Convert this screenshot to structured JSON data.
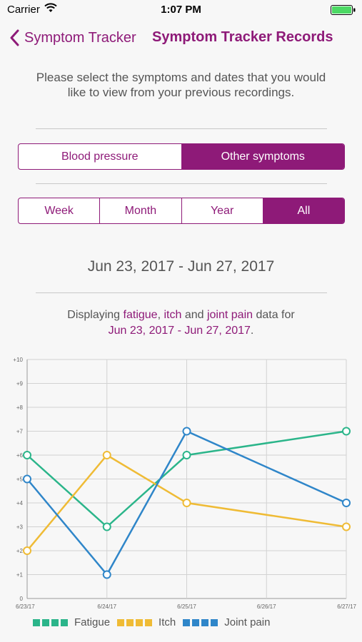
{
  "status_bar": {
    "carrier": "Carrier",
    "time": "1:07 PM"
  },
  "nav": {
    "back_label": "Symptom Tracker",
    "title": "Symptom Tracker Records"
  },
  "intro_text": "Please select the symptoms and dates that you would like to view from your previous recordings.",
  "category_segment": {
    "options": [
      "Blood pressure",
      "Other symptoms"
    ],
    "selected": 1
  },
  "period_segment": {
    "options": [
      "Week",
      "Month",
      "Year",
      "All"
    ],
    "selected": 3
  },
  "date_range": "Jun 23, 2017 - Jun 27, 2017",
  "display": {
    "prefix": "Displaying ",
    "symptom1": "fatigue",
    "sep1": ", ",
    "symptom2": "itch",
    "sep2": " and ",
    "symptom3": "joint pain",
    "suffix": " data for",
    "range": "Jun 23, 2017 - Jun 27, 2017",
    "end": "."
  },
  "colors": {
    "accent": "#8e1a78",
    "fatigue": "#2bb58a",
    "itch": "#efbb35",
    "joint_pain": "#2f86c9"
  },
  "chart_data": {
    "type": "line",
    "categories": [
      "6/23/17",
      "6/24/17",
      "6/25/17",
      "6/26/17",
      "6/27/17"
    ],
    "y_ticks": [
      "0",
      "+1",
      "+2",
      "+3",
      "+4",
      "+5",
      "+6",
      "+7",
      "+8",
      "+9",
      "+10"
    ],
    "ylim": [
      0,
      10
    ],
    "grid": true,
    "legend": "bottom-left",
    "series": [
      {
        "name": "Fatigue",
        "color": "#2bb58a",
        "points": [
          [
            0,
            6
          ],
          [
            1,
            3
          ],
          [
            2,
            6
          ],
          [
            4,
            7
          ]
        ]
      },
      {
        "name": "Itch",
        "color": "#efbb35",
        "points": [
          [
            0,
            2
          ],
          [
            1,
            6
          ],
          [
            2,
            4
          ],
          [
            4,
            3
          ]
        ]
      },
      {
        "name": "Joint pain",
        "color": "#2f86c9",
        "points": [
          [
            0,
            5
          ],
          [
            1,
            1
          ],
          [
            2,
            7
          ],
          [
            4,
            4
          ]
        ]
      }
    ]
  }
}
